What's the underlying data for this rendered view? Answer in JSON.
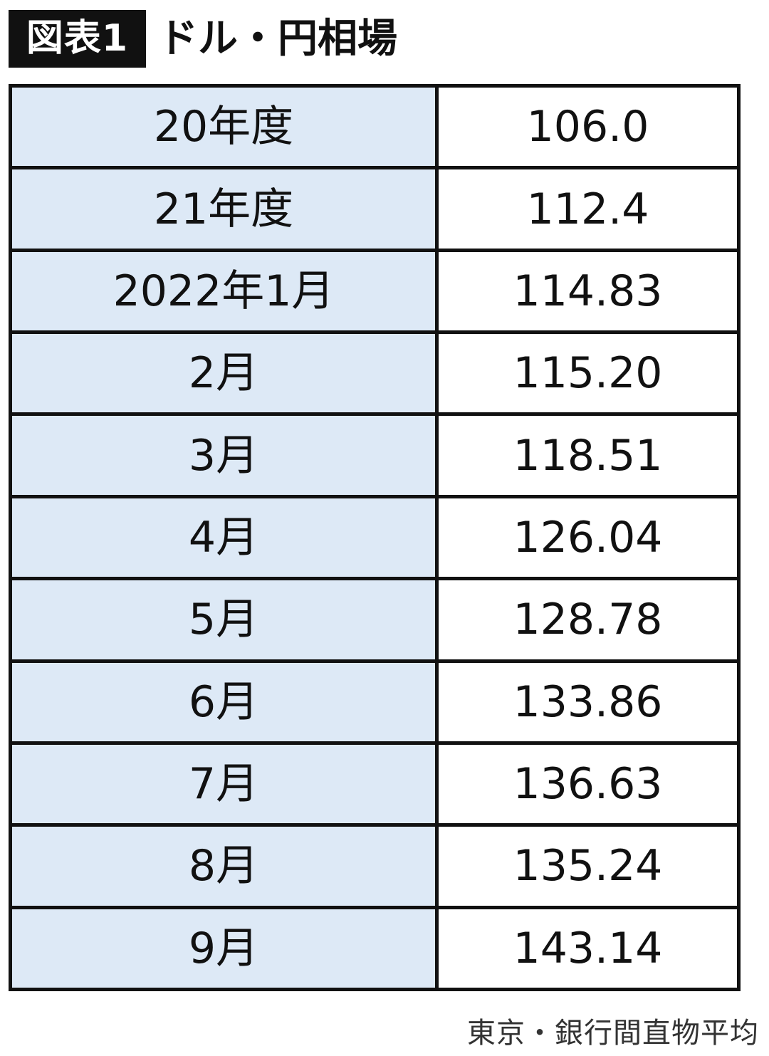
{
  "header": {
    "badge": "図表1",
    "title": "ドル・円相場"
  },
  "chart_data": {
    "type": "table",
    "title": "ドル・円相場",
    "rows": [
      {
        "label": "20年度",
        "value": "106.0"
      },
      {
        "label": "21年度",
        "value": "112.4"
      },
      {
        "label": "2022年1月",
        "value": "114.83"
      },
      {
        "label": "2月",
        "value": "115.20"
      },
      {
        "label": "3月",
        "value": "118.51"
      },
      {
        "label": "4月",
        "value": "126.04"
      },
      {
        "label": "5月",
        "value": "128.78"
      },
      {
        "label": "6月",
        "value": "133.86"
      },
      {
        "label": "7月",
        "value": "136.63"
      },
      {
        "label": "8月",
        "value": "135.24"
      },
      {
        "label": "9月",
        "value": "143.14"
      }
    ],
    "colors": {
      "label_bg": "#dde9f6",
      "border": "#111111"
    }
  },
  "footer": {
    "source": "東京・銀行間直物平均"
  }
}
